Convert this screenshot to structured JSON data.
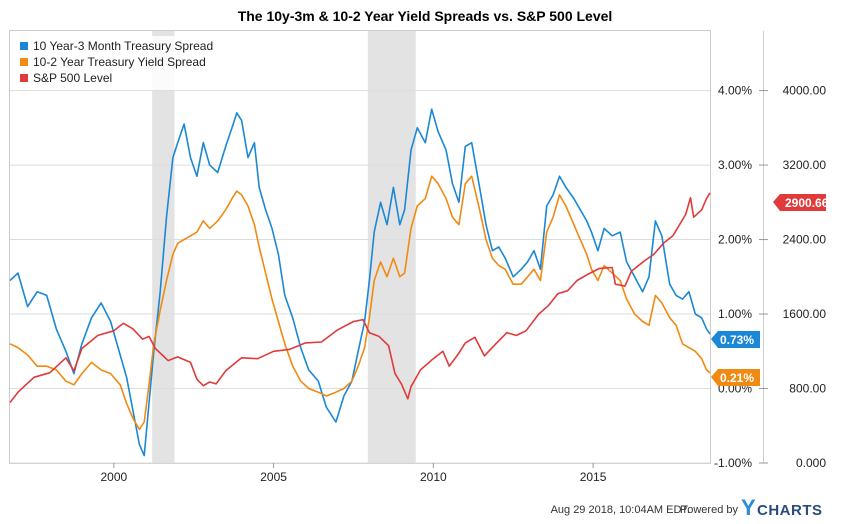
{
  "chart_data": {
    "type": "line",
    "title": "The 10y-3m & 10-2 Year Yield Spreads vs. S&P 500 Level",
    "x_range": [
      1996.75,
      2018.66
    ],
    "x_ticks": [
      "2000",
      "2005",
      "2010",
      "2015"
    ],
    "left_axis": {
      "range": [
        -1.0,
        4.8
      ],
      "ticks": [
        -1,
        0,
        1,
        2,
        3,
        4
      ],
      "tick_labels": [
        "-1.00%",
        "0.00%",
        "1.00%",
        "2.00%",
        "3.00%",
        "4.00%"
      ]
    },
    "right_axis": {
      "range": [
        0,
        4640
      ],
      "ticks": [
        0,
        800,
        1600,
        2400,
        3200,
        4000
      ],
      "tick_labels": [
        "0.000",
        "800.00",
        "1600.00",
        "2400.00",
        "3200.00",
        "4000.00"
      ]
    },
    "recessions": [
      [
        2001.2,
        2001.9
      ],
      [
        2007.95,
        2009.45
      ]
    ],
    "series": [
      {
        "name": "10 Year-3 Month Treasury Spread",
        "color": "#1a88d6",
        "axis": "left",
        "last_label": "0.73%",
        "points": [
          [
            1996.75,
            1.45
          ],
          [
            1997.0,
            1.55
          ],
          [
            1997.3,
            1.1
          ],
          [
            1997.6,
            1.3
          ],
          [
            1997.9,
            1.25
          ],
          [
            1998.2,
            0.8
          ],
          [
            1998.5,
            0.5
          ],
          [
            1998.75,
            0.2
          ],
          [
            1999.0,
            0.6
          ],
          [
            1999.3,
            0.95
          ],
          [
            1999.6,
            1.15
          ],
          [
            1999.9,
            0.9
          ],
          [
            2000.2,
            0.45
          ],
          [
            2000.4,
            0.15
          ],
          [
            2000.6,
            -0.3
          ],
          [
            2000.8,
            -0.75
          ],
          [
            2000.95,
            -0.9
          ],
          [
            2001.1,
            -0.2
          ],
          [
            2001.25,
            0.5
          ],
          [
            2001.45,
            1.3
          ],
          [
            2001.65,
            2.3
          ],
          [
            2001.85,
            3.1
          ],
          [
            2002.0,
            3.3
          ],
          [
            2002.2,
            3.55
          ],
          [
            2002.4,
            3.1
          ],
          [
            2002.6,
            2.85
          ],
          [
            2002.8,
            3.3
          ],
          [
            2003.0,
            3.0
          ],
          [
            2003.25,
            2.9
          ],
          [
            2003.5,
            3.25
          ],
          [
            2003.7,
            3.5
          ],
          [
            2003.85,
            3.7
          ],
          [
            2004.0,
            3.6
          ],
          [
            2004.2,
            3.1
          ],
          [
            2004.4,
            3.3
          ],
          [
            2004.55,
            2.7
          ],
          [
            2004.75,
            2.4
          ],
          [
            2004.95,
            2.15
          ],
          [
            2005.15,
            1.8
          ],
          [
            2005.35,
            1.25
          ],
          [
            2005.6,
            0.95
          ],
          [
            2005.85,
            0.55
          ],
          [
            2006.1,
            0.25
          ],
          [
            2006.4,
            0.1
          ],
          [
            2006.65,
            -0.25
          ],
          [
            2006.95,
            -0.45
          ],
          [
            2007.2,
            -0.1
          ],
          [
            2007.45,
            0.1
          ],
          [
            2007.65,
            0.5
          ],
          [
            2007.85,
            0.9
          ],
          [
            2008.0,
            1.45
          ],
          [
            2008.15,
            2.1
          ],
          [
            2008.35,
            2.5
          ],
          [
            2008.55,
            2.2
          ],
          [
            2008.75,
            2.7
          ],
          [
            2008.95,
            2.2
          ],
          [
            2009.1,
            2.4
          ],
          [
            2009.3,
            3.2
          ],
          [
            2009.5,
            3.5
          ],
          [
            2009.75,
            3.3
          ],
          [
            2009.95,
            3.75
          ],
          [
            2010.15,
            3.45
          ],
          [
            2010.4,
            3.2
          ],
          [
            2010.6,
            2.75
          ],
          [
            2010.8,
            2.5
          ],
          [
            2011.0,
            3.25
          ],
          [
            2011.2,
            3.3
          ],
          [
            2011.45,
            2.7
          ],
          [
            2011.65,
            2.2
          ],
          [
            2011.85,
            1.85
          ],
          [
            2012.05,
            1.9
          ],
          [
            2012.25,
            1.75
          ],
          [
            2012.5,
            1.5
          ],
          [
            2012.75,
            1.6
          ],
          [
            2012.95,
            1.7
          ],
          [
            2013.15,
            1.85
          ],
          [
            2013.35,
            1.6
          ],
          [
            2013.55,
            2.45
          ],
          [
            2013.75,
            2.6
          ],
          [
            2013.95,
            2.85
          ],
          [
            2014.15,
            2.7
          ],
          [
            2014.4,
            2.55
          ],
          [
            2014.6,
            2.4
          ],
          [
            2014.8,
            2.25
          ],
          [
            2014.95,
            2.1
          ],
          [
            2015.15,
            1.85
          ],
          [
            2015.35,
            2.15
          ],
          [
            2015.6,
            2.05
          ],
          [
            2015.85,
            2.1
          ],
          [
            2016.05,
            1.7
          ],
          [
            2016.3,
            1.5
          ],
          [
            2016.55,
            1.3
          ],
          [
            2016.75,
            1.5
          ],
          [
            2016.95,
            2.25
          ],
          [
            2017.15,
            2.05
          ],
          [
            2017.4,
            1.4
          ],
          [
            2017.6,
            1.25
          ],
          [
            2017.8,
            1.2
          ],
          [
            2018.0,
            1.3
          ],
          [
            2018.2,
            1.0
          ],
          [
            2018.4,
            0.95
          ],
          [
            2018.55,
            0.8
          ],
          [
            2018.66,
            0.73
          ]
        ]
      },
      {
        "name": "10-2 Year Treasury Yield Spread",
        "color": "#f08a12",
        "axis": "left",
        "last_label": "0.21%",
        "points": [
          [
            1996.75,
            0.6
          ],
          [
            1997.0,
            0.55
          ],
          [
            1997.3,
            0.45
          ],
          [
            1997.6,
            0.3
          ],
          [
            1997.9,
            0.3
          ],
          [
            1998.2,
            0.25
          ],
          [
            1998.5,
            0.1
          ],
          [
            1998.75,
            0.05
          ],
          [
            1999.0,
            0.2
          ],
          [
            1999.3,
            0.35
          ],
          [
            1999.6,
            0.25
          ],
          [
            1999.9,
            0.2
          ],
          [
            2000.2,
            0.05
          ],
          [
            2000.4,
            -0.2
          ],
          [
            2000.6,
            -0.4
          ],
          [
            2000.8,
            -0.55
          ],
          [
            2000.95,
            -0.45
          ],
          [
            2001.1,
            0.05
          ],
          [
            2001.25,
            0.6
          ],
          [
            2001.45,
            1.05
          ],
          [
            2001.65,
            1.45
          ],
          [
            2001.85,
            1.8
          ],
          [
            2002.0,
            1.95
          ],
          [
            2002.2,
            2.0
          ],
          [
            2002.4,
            2.05
          ],
          [
            2002.6,
            2.1
          ],
          [
            2002.8,
            2.25
          ],
          [
            2003.0,
            2.15
          ],
          [
            2003.25,
            2.25
          ],
          [
            2003.5,
            2.4
          ],
          [
            2003.7,
            2.55
          ],
          [
            2003.85,
            2.65
          ],
          [
            2004.0,
            2.6
          ],
          [
            2004.2,
            2.45
          ],
          [
            2004.4,
            2.2
          ],
          [
            2004.55,
            1.9
          ],
          [
            2004.75,
            1.55
          ],
          [
            2004.95,
            1.2
          ],
          [
            2005.15,
            0.9
          ],
          [
            2005.35,
            0.6
          ],
          [
            2005.6,
            0.3
          ],
          [
            2005.85,
            0.1
          ],
          [
            2006.1,
            0.0
          ],
          [
            2006.4,
            -0.05
          ],
          [
            2006.65,
            -0.1
          ],
          [
            2006.95,
            -0.05
          ],
          [
            2007.2,
            0.0
          ],
          [
            2007.45,
            0.1
          ],
          [
            2007.65,
            0.3
          ],
          [
            2007.85,
            0.55
          ],
          [
            2008.0,
            0.95
          ],
          [
            2008.15,
            1.45
          ],
          [
            2008.35,
            1.7
          ],
          [
            2008.55,
            1.5
          ],
          [
            2008.75,
            1.75
          ],
          [
            2008.95,
            1.5
          ],
          [
            2009.1,
            1.55
          ],
          [
            2009.3,
            2.15
          ],
          [
            2009.5,
            2.45
          ],
          [
            2009.75,
            2.55
          ],
          [
            2009.95,
            2.85
          ],
          [
            2010.15,
            2.75
          ],
          [
            2010.4,
            2.55
          ],
          [
            2010.6,
            2.3
          ],
          [
            2010.8,
            2.2
          ],
          [
            2011.0,
            2.75
          ],
          [
            2011.2,
            2.85
          ],
          [
            2011.45,
            2.4
          ],
          [
            2011.65,
            2.0
          ],
          [
            2011.85,
            1.75
          ],
          [
            2012.05,
            1.65
          ],
          [
            2012.25,
            1.6
          ],
          [
            2012.5,
            1.4
          ],
          [
            2012.75,
            1.4
          ],
          [
            2012.95,
            1.5
          ],
          [
            2013.15,
            1.6
          ],
          [
            2013.35,
            1.45
          ],
          [
            2013.55,
            2.1
          ],
          [
            2013.75,
            2.3
          ],
          [
            2013.95,
            2.6
          ],
          [
            2014.15,
            2.45
          ],
          [
            2014.4,
            2.2
          ],
          [
            2014.6,
            2.0
          ],
          [
            2014.8,
            1.8
          ],
          [
            2014.95,
            1.6
          ],
          [
            2015.15,
            1.45
          ],
          [
            2015.35,
            1.65
          ],
          [
            2015.6,
            1.55
          ],
          [
            2015.85,
            1.45
          ],
          [
            2016.05,
            1.2
          ],
          [
            2016.3,
            1.0
          ],
          [
            2016.55,
            0.9
          ],
          [
            2016.75,
            0.85
          ],
          [
            2016.95,
            1.25
          ],
          [
            2017.15,
            1.15
          ],
          [
            2017.4,
            0.95
          ],
          [
            2017.6,
            0.85
          ],
          [
            2017.8,
            0.6
          ],
          [
            2018.0,
            0.55
          ],
          [
            2018.2,
            0.5
          ],
          [
            2018.4,
            0.4
          ],
          [
            2018.55,
            0.25
          ],
          [
            2018.66,
            0.21
          ]
        ]
      },
      {
        "name": "S&P 500 Level",
        "color": "#e03a3a",
        "axis": "right",
        "last_label": "2900.66",
        "points": [
          [
            1996.75,
            650
          ],
          [
            1997.0,
            760
          ],
          [
            1997.5,
            920
          ],
          [
            1998.0,
            970
          ],
          [
            1998.5,
            1130
          ],
          [
            1998.75,
            990
          ],
          [
            1999.0,
            1230
          ],
          [
            1999.5,
            1370
          ],
          [
            2000.0,
            1420
          ],
          [
            2000.3,
            1500
          ],
          [
            2000.6,
            1440
          ],
          [
            2000.9,
            1330
          ],
          [
            2001.1,
            1360
          ],
          [
            2001.3,
            1230
          ],
          [
            2001.7,
            1100
          ],
          [
            2002.0,
            1140
          ],
          [
            2002.4,
            1080
          ],
          [
            2002.6,
            900
          ],
          [
            2002.8,
            830
          ],
          [
            2003.0,
            870
          ],
          [
            2003.2,
            850
          ],
          [
            2003.5,
            990
          ],
          [
            2004.0,
            1130
          ],
          [
            2004.5,
            1120
          ],
          [
            2005.0,
            1200
          ],
          [
            2005.5,
            1220
          ],
          [
            2006.0,
            1290
          ],
          [
            2006.5,
            1300
          ],
          [
            2007.0,
            1430
          ],
          [
            2007.5,
            1520
          ],
          [
            2007.8,
            1540
          ],
          [
            2008.0,
            1400
          ],
          [
            2008.3,
            1360
          ],
          [
            2008.6,
            1260
          ],
          [
            2008.8,
            960
          ],
          [
            2009.0,
            850
          ],
          [
            2009.2,
            690
          ],
          [
            2009.3,
            820
          ],
          [
            2009.6,
            1000
          ],
          [
            2010.0,
            1120
          ],
          [
            2010.3,
            1200
          ],
          [
            2010.5,
            1040
          ],
          [
            2010.8,
            1180
          ],
          [
            2011.0,
            1290
          ],
          [
            2011.3,
            1350
          ],
          [
            2011.6,
            1150
          ],
          [
            2011.9,
            1260
          ],
          [
            2012.3,
            1400
          ],
          [
            2012.6,
            1370
          ],
          [
            2012.9,
            1420
          ],
          [
            2013.3,
            1600
          ],
          [
            2013.6,
            1690
          ],
          [
            2013.9,
            1820
          ],
          [
            2014.2,
            1850
          ],
          [
            2014.5,
            1960
          ],
          [
            2014.8,
            2020
          ],
          [
            2015.2,
            2090
          ],
          [
            2015.6,
            2100
          ],
          [
            2015.7,
            1920
          ],
          [
            2016.0,
            1900
          ],
          [
            2016.2,
            2060
          ],
          [
            2016.6,
            2170
          ],
          [
            2016.9,
            2240
          ],
          [
            2017.2,
            2360
          ],
          [
            2017.5,
            2440
          ],
          [
            2017.9,
            2670
          ],
          [
            2018.05,
            2850
          ],
          [
            2018.15,
            2640
          ],
          [
            2018.4,
            2720
          ],
          [
            2018.55,
            2840
          ],
          [
            2018.66,
            2900.66
          ]
        ]
      }
    ]
  },
  "footer": {
    "timestamp": "Aug 29 2018, 10:04AM EDT.",
    "powered_by": "Powered by",
    "logo_y": "Y",
    "logo_rest": "CHARTS"
  }
}
